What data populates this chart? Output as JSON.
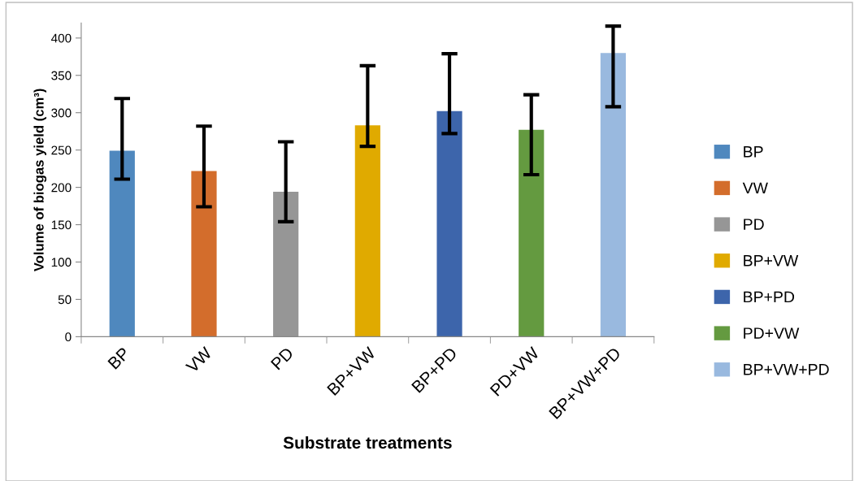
{
  "chart_data": {
    "type": "bar",
    "xlabel": "Substrate treatments",
    "ylabel": "Volume of biogas yield (cm³)",
    "categories": [
      "BP",
      "VW",
      "PD",
      "BP+VW",
      "BP+PD",
      "PD+VW",
      "BP+VW+PD"
    ],
    "series": [
      {
        "name": "BP",
        "color": "#4f88be",
        "values": [
          249,
          null,
          null,
          null,
          null,
          null,
          null
        ],
        "errors": [
          [
            211,
            319
          ],
          null,
          null,
          null,
          null,
          null,
          null
        ]
      },
      {
        "name": "VW",
        "color": "#d36d2c",
        "values": [
          null,
          222,
          null,
          null,
          null,
          null,
          null
        ],
        "errors": [
          null,
          [
            174,
            282
          ],
          null,
          null,
          null,
          null,
          null
        ]
      },
      {
        "name": "PD",
        "color": "#969696",
        "values": [
          null,
          null,
          194,
          null,
          null,
          null,
          null
        ],
        "errors": [
          null,
          null,
          [
            154,
            261
          ],
          null,
          null,
          null,
          null
        ]
      },
      {
        "name": "BP+VW",
        "color": "#e0aa00",
        "values": [
          null,
          null,
          null,
          283,
          null,
          null,
          null
        ],
        "errors": [
          null,
          null,
          null,
          [
            255,
            363
          ],
          null,
          null,
          null
        ]
      },
      {
        "name": "BP+PD",
        "color": "#3d65ab",
        "values": [
          null,
          null,
          null,
          null,
          302,
          null,
          null
        ],
        "errors": [
          null,
          null,
          null,
          null,
          [
            272,
            379
          ],
          null,
          null
        ]
      },
      {
        "name": "PD+VW",
        "color": "#649a40",
        "values": [
          null,
          null,
          null,
          null,
          null,
          277,
          null
        ],
        "errors": [
          null,
          null,
          null,
          null,
          null,
          [
            217,
            324
          ],
          null
        ]
      },
      {
        "name": "BP+VW+PD",
        "color": "#99b9df",
        "values": [
          null,
          null,
          null,
          null,
          null,
          null,
          380
        ],
        "errors": [
          null,
          null,
          null,
          null,
          null,
          null,
          [
            308,
            416
          ]
        ]
      }
    ],
    "ylim": [
      0,
      420
    ],
    "yticks": [
      0,
      50,
      100,
      150,
      200,
      250,
      300,
      350,
      400
    ],
    "grid": false,
    "legend": "right"
  }
}
